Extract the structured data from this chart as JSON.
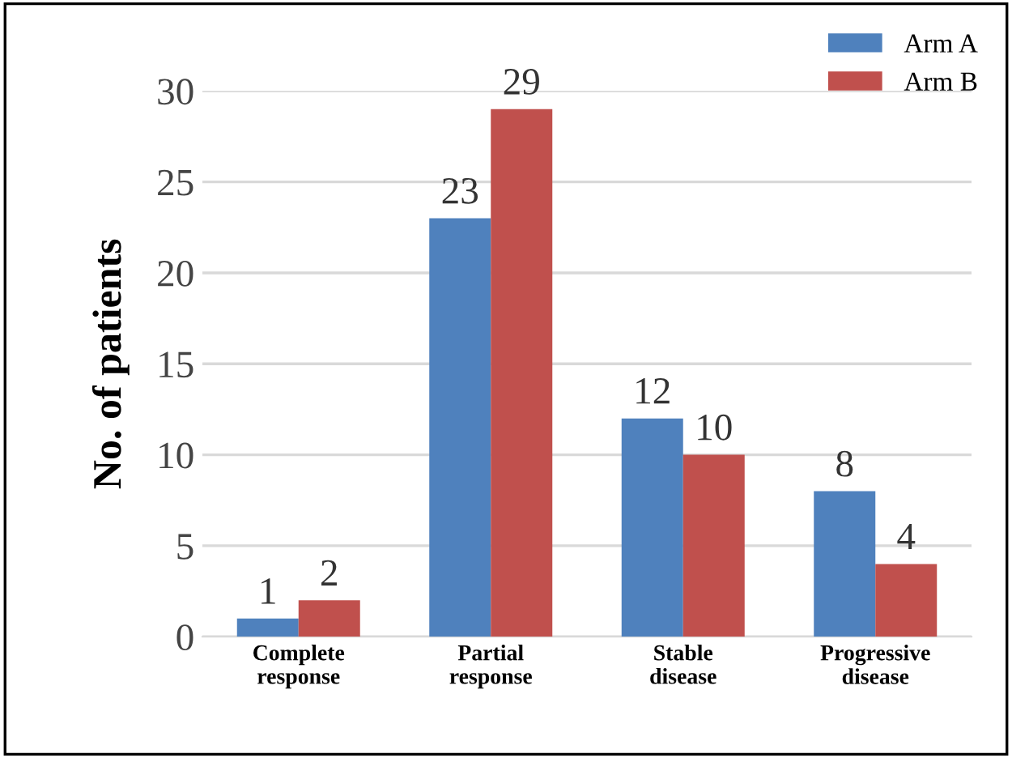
{
  "chart_data": {
    "type": "bar",
    "ylabel": "No. of patients",
    "categories": [
      "Complete\nresponse",
      "Partial\nresponse",
      "Stable\ndisease",
      "Progressive\ndisease"
    ],
    "series": [
      {
        "name": "Arm A",
        "color": "#4f81bd",
        "values": [
          1,
          23,
          12,
          8
        ]
      },
      {
        "name": "Arm B",
        "color": "#c0504d",
        "values": [
          2,
          29,
          10,
          4
        ]
      }
    ],
    "ylim": [
      0,
      30
    ],
    "yticks": [
      0,
      5,
      10,
      15,
      20,
      25,
      30
    ],
    "grid": "y",
    "legend": "top right",
    "data_labels": true
  }
}
